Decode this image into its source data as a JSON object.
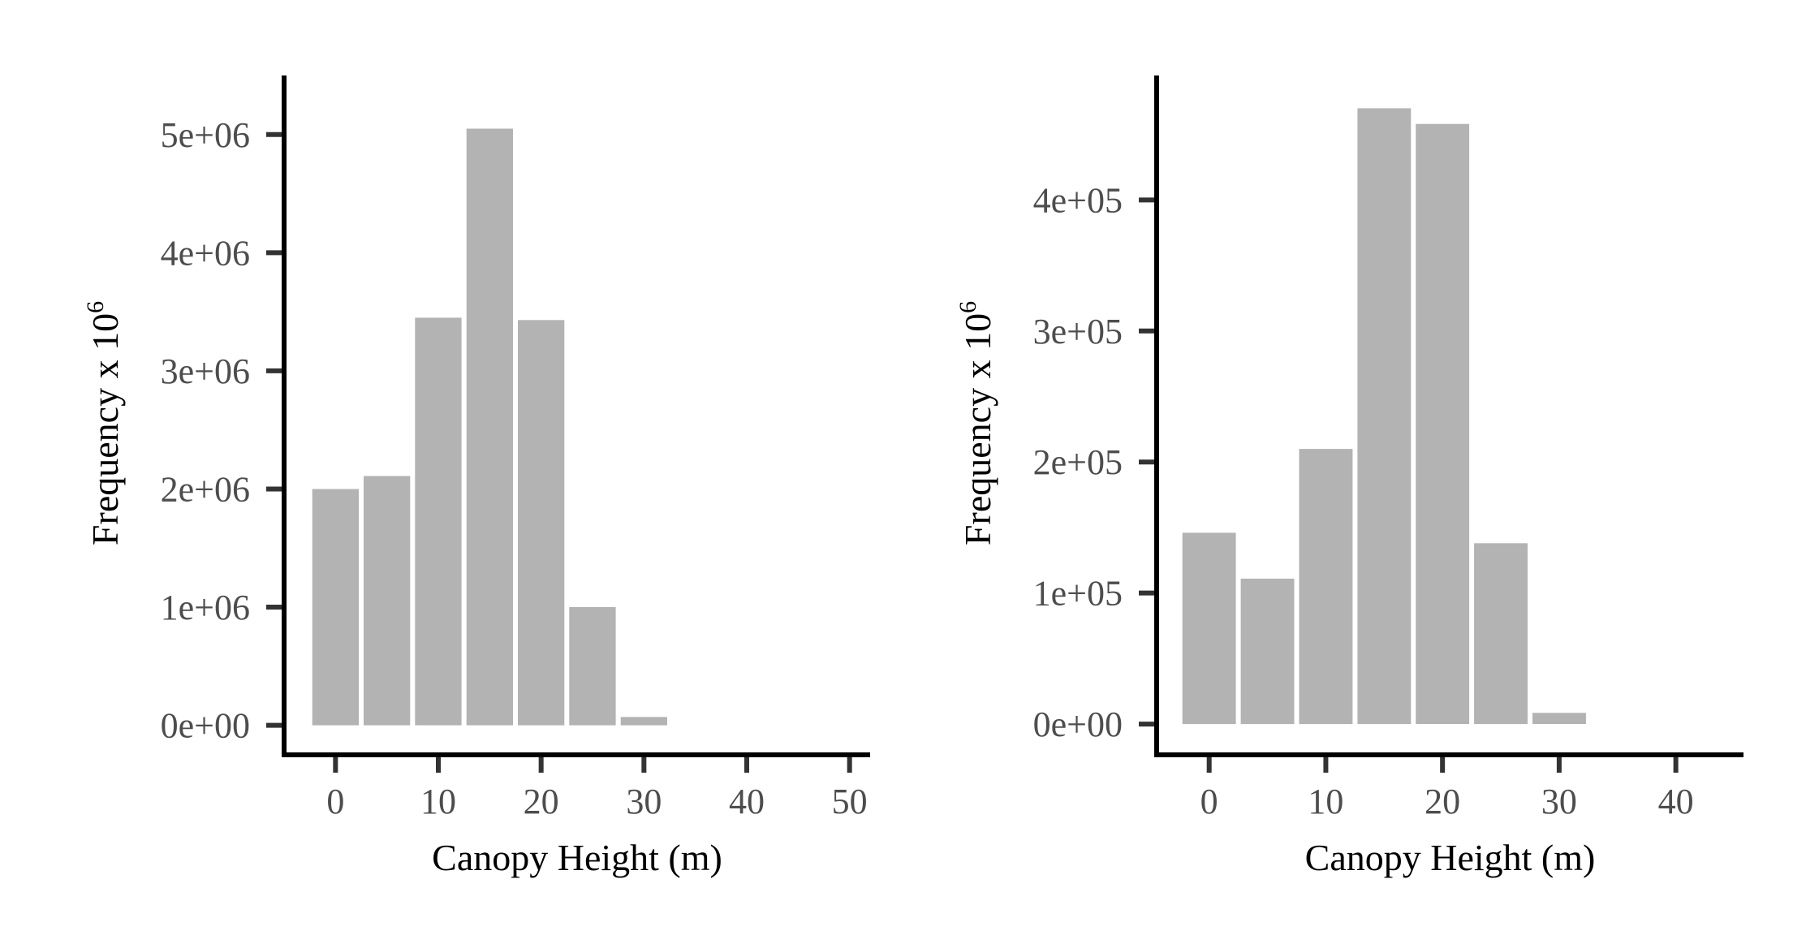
{
  "colors": {
    "bar_fill": "#b3b3b3",
    "axis_line": "#000000",
    "tick_mark": "#333333",
    "tick_label": "#4d4d4d",
    "background": "#ffffff"
  },
  "chart_data": [
    {
      "type": "bar",
      "title": "",
      "xlabel": "Canopy Height (m)",
      "ylabel_text": "Frequency x 10",
      "ylabel_superscript": "6",
      "bin_width": 5,
      "x": [
        0,
        5,
        10,
        15,
        20,
        25,
        30
      ],
      "values": [
        2000000,
        2110000,
        3450000,
        5050000,
        3430000,
        1000000,
        70000
      ],
      "xlim": [
        -5,
        52
      ],
      "ylim": [
        -250000,
        5500000
      ],
      "x_ticks": [
        0,
        10,
        20,
        30,
        40,
        50
      ],
      "x_tick_labels": [
        "0",
        "10",
        "20",
        "30",
        "40",
        "50"
      ],
      "y_ticks": [
        0,
        1000000,
        2000000,
        3000000,
        4000000,
        5000000
      ],
      "y_tick_labels": [
        "0e+00",
        "1e+06",
        "2e+06",
        "3e+06",
        "4e+06",
        "5e+06"
      ],
      "grid": false,
      "legend": "none"
    },
    {
      "type": "bar",
      "title": "",
      "xlabel": "Canopy Height (m)",
      "ylabel_text": "Frequency x 10",
      "ylabel_superscript": "6",
      "bin_width": 5,
      "x": [
        0,
        5,
        10,
        15,
        20,
        25,
        30
      ],
      "values": [
        146000,
        111000,
        210000,
        470000,
        458000,
        138000,
        8500
      ],
      "xlim": [
        -4.5,
        45.8
      ],
      "ylim": [
        -23500,
        495000
      ],
      "x_ticks": [
        0,
        10,
        20,
        30,
        40
      ],
      "x_tick_labels": [
        "0",
        "10",
        "20",
        "30",
        "40"
      ],
      "y_ticks": [
        0,
        100000,
        200000,
        300000,
        400000
      ],
      "y_tick_labels": [
        "0e+00",
        "1e+05",
        "2e+05",
        "3e+05",
        "4e+05"
      ],
      "grid": false,
      "legend": "none"
    }
  ]
}
